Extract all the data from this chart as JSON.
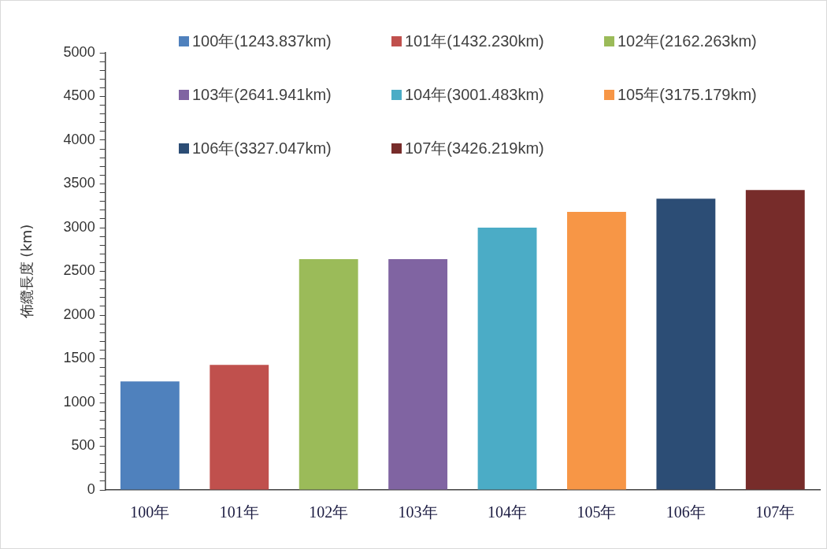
{
  "chart_data": {
    "type": "bar",
    "ylabel": "佈纜長度 (km)",
    "categories": [
      "100年",
      "101年",
      "102年",
      "103年",
      "104年",
      "105年",
      "106年",
      "107年"
    ],
    "series": [
      {
        "name": "100年(1243.837km)",
        "color": "#4f81bd",
        "values": [
          1240,
          null,
          null,
          null,
          null,
          null,
          null,
          null
        ]
      },
      {
        "name": "101年(1432.230km)",
        "color": "#c0504d",
        "values": [
          null,
          1430,
          null,
          null,
          null,
          null,
          null,
          null
        ]
      },
      {
        "name": "102年(2162.263km)",
        "color": "#9bbb59",
        "values": [
          null,
          null,
          2640,
          null,
          null,
          null,
          null,
          null
        ]
      },
      {
        "name": "103年(2641.941km)",
        "color": "#8064a2",
        "values": [
          null,
          null,
          null,
          2640,
          null,
          null,
          null,
          null
        ]
      },
      {
        "name": "104年(3001.483km)",
        "color": "#4bacc6",
        "values": [
          null,
          null,
          null,
          null,
          3000,
          null,
          null,
          null
        ]
      },
      {
        "name": "105年(3175.179km)",
        "color": "#f79646",
        "values": [
          null,
          null,
          null,
          null,
          null,
          3180,
          null,
          null
        ]
      },
      {
        "name": "106年(3327.047km)",
        "color": "#2c4d75",
        "values": [
          null,
          null,
          null,
          null,
          null,
          null,
          3330,
          null
        ]
      },
      {
        "name": "107年(3426.219km)",
        "color": "#772c2a",
        "values": [
          null,
          null,
          null,
          null,
          null,
          null,
          null,
          3430
        ]
      }
    ],
    "ylim": [
      0,
      5000
    ],
    "yticks": [
      0,
      {
        "value": 100,
        "label": null
      },
      {
        "value": 200,
        "label": null
      },
      {
        "value": 300,
        "label": null
      },
      {
        "value": 400,
        "label": null
      },
      500,
      {
        "value": 600,
        "label": null
      },
      {
        "value": 700,
        "label": null
      },
      {
        "value": 800,
        "label": null
      },
      {
        "value": 900,
        "label": null
      },
      1000,
      {
        "value": 1100,
        "label": null
      },
      {
        "value": 1200,
        "label": null
      },
      {
        "value": 1300,
        "label": null
      },
      {
        "value": 1400,
        "label": null
      },
      1500,
      {
        "value": 1600,
        "label": null
      },
      {
        "value": 1700,
        "label": null
      },
      {
        "value": 1800,
        "label": null
      },
      {
        "value": 1900,
        "label": null
      },
      2000,
      {
        "value": 2100,
        "label": null
      },
      {
        "value": 2200,
        "label": null
      },
      {
        "value": 2300,
        "label": null
      },
      {
        "value": 2400,
        "label": null
      },
      2500,
      {
        "value": 2600,
        "label": null
      },
      {
        "value": 2700,
        "label": null
      },
      {
        "value": 2800,
        "label": null
      },
      {
        "value": 2900,
        "label": null
      },
      3000,
      {
        "value": 3100,
        "label": null
      },
      {
        "value": 3200,
        "label": null
      },
      {
        "value": 3300,
        "label": null
      },
      {
        "value": 3400,
        "label": null
      },
      3500,
      {
        "value": 3600,
        "label": null
      },
      {
        "value": 3700,
        "label": null
      },
      {
        "value": 3800,
        "label": null
      },
      {
        "value": 3900,
        "label": null
      },
      4000,
      {
        "value": 4100,
        "label": null
      },
      {
        "value": 4200,
        "label": null
      },
      {
        "value": 4300,
        "label": null
      },
      {
        "value": 4400,
        "label": null
      },
      4500,
      {
        "value": 4600,
        "label": null
      },
      {
        "value": 4700,
        "label": null
      },
      {
        "value": 4800,
        "label": null
      },
      {
        "value": 4900,
        "label": null
      },
      5000
    ],
    "grid": false,
    "legend": "top"
  }
}
